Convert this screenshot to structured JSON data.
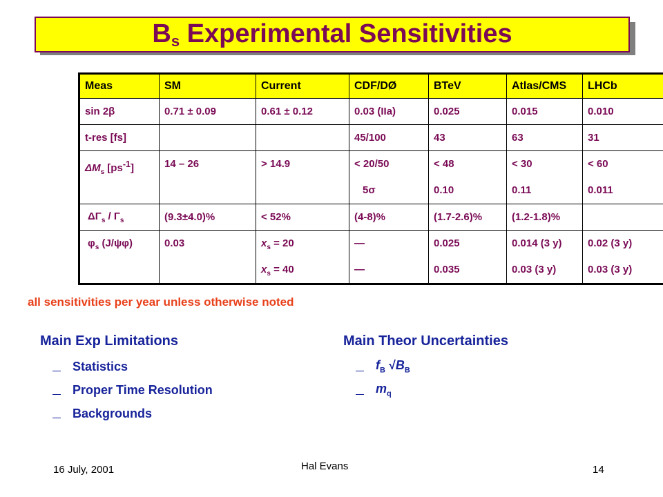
{
  "title": {
    "main": "B",
    "sub": "s",
    "rest": " Experimental Sensitivities"
  },
  "table": {
    "headers": [
      "Meas",
      "SM",
      "Current",
      "CDF/DØ",
      "BTeV",
      "Atlas/CMS",
      "LHCb"
    ],
    "rows": [
      {
        "meas": "sin 2β",
        "sm": "0.71 ± 0.09",
        "current": "0.61 ± 0.12",
        "cdf": "0.03 (IIa)",
        "btev": "0.025",
        "atlas": "0.015",
        "lhcb": "0.010"
      },
      {
        "meas": "t-res [fs]",
        "sm": "",
        "current": "",
        "cdf": "45/100",
        "btev": "43",
        "atlas": "63",
        "lhcb": "31"
      },
      {
        "meas_pre": "ΔM",
        "meas_sub": "s",
        "meas_post": " [ps",
        "meas_sup": "-1",
        "meas_end": "]",
        "sm": "14 – 26",
        "current": "> 14.9",
        "cdf": [
          "< 20/50",
          "5σ"
        ],
        "btev": [
          "< 48",
          "0.10"
        ],
        "atlas": [
          "< 30",
          "0.11"
        ],
        "lhcb": [
          "< 60",
          "0.011"
        ]
      },
      {
        "meas_pre": "ΔΓ",
        "meas_sub": "s",
        "meas_mid": " / Γ",
        "meas_sub2": "s",
        "sm": "(9.3±4.0)%",
        "current": "< 52%",
        "cdf": "(4-8)%",
        "btev": "(1.7-2.6)%",
        "atlas": "(1.2-1.8)%",
        "lhcb": ""
      },
      {
        "meas_pre": "φ",
        "meas_sub": "s",
        "meas_post": " (J/ψφ)",
        "sm": "0.03",
        "current": [
          {
            "x": "x",
            "sub": "s",
            "val": " = 20"
          },
          {
            "x": "x",
            "sub": "s",
            "val": " = 40"
          }
        ],
        "cdf": [
          "—",
          "—"
        ],
        "btev": [
          "0.025",
          "0.035"
        ],
        "atlas": [
          "0.014 (3 y)",
          "0.03 (3 y)"
        ],
        "lhcb": [
          "0.02 (3 y)",
          "0.03 (3 y)"
        ]
      }
    ]
  },
  "note": "all sensitivities per year unless otherwise noted",
  "left": {
    "heading": "Main Exp Limitations",
    "items": [
      "Statistics",
      "Proper Time Resolution",
      "Backgrounds"
    ]
  },
  "right": {
    "heading": "Main Theor Uncertainties",
    "item1": {
      "f": "f",
      "fsub": "B",
      "root": " √",
      "b": "B",
      "bsub": "B"
    },
    "item2": {
      "m": "m",
      "msub": "q"
    }
  },
  "footer": {
    "date": "16 July, 2001",
    "author": "Hal Evans",
    "page": "14"
  },
  "colors": {
    "title_bg": "#ffff00",
    "title_text": "#7a0a55",
    "cell_text": "#7a0a55",
    "note": "#e8401a",
    "body_text": "#17239a"
  }
}
